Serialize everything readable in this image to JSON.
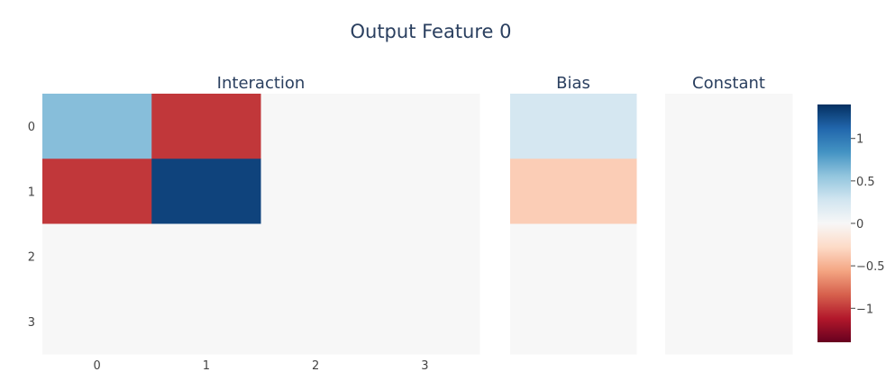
{
  "chart_data": {
    "type": "heatmap",
    "title": "Output Feature 0",
    "panels": [
      {
        "name": "Interaction",
        "x_ticks": [
          "0",
          "1",
          "2",
          "3"
        ],
        "y_ticks": [
          "0",
          "1",
          "2",
          "3"
        ],
        "z": [
          [
            0.6,
            -1.0,
            0,
            0
          ],
          [
            -1.0,
            1.3,
            0,
            0
          ],
          [
            0,
            0,
            0,
            0
          ],
          [
            0,
            0,
            0,
            0
          ]
        ]
      },
      {
        "name": "Bias",
        "x_ticks": [],
        "y_ticks": [],
        "z": [
          [
            0.25
          ],
          [
            -0.35
          ],
          [
            0
          ],
          [
            0
          ]
        ]
      },
      {
        "name": "Constant",
        "x_ticks": [],
        "y_ticks": [],
        "z": [
          [
            0
          ],
          [
            0
          ],
          [
            0
          ],
          [
            0
          ]
        ]
      }
    ],
    "colorscale": "RdBu",
    "zmin": -1.4,
    "zmax": 1.4,
    "colorbar_ticks": [
      {
        "value": 1,
        "label": "1"
      },
      {
        "value": 0.5,
        "label": "0.5"
      },
      {
        "value": 0,
        "label": "0"
      },
      {
        "value": -0.5,
        "label": "−0.5"
      },
      {
        "value": -1,
        "label": "−1"
      }
    ],
    "colorscale_stops": [
      [
        0,
        "#67001f"
      ],
      [
        0.1,
        "#b2182b"
      ],
      [
        0.2,
        "#d6604d"
      ],
      [
        0.3,
        "#f4a582"
      ],
      [
        0.4,
        "#fddbc7"
      ],
      [
        0.5,
        "#f7f7f7"
      ],
      [
        0.6,
        "#d1e5f0"
      ],
      [
        0.7,
        "#92c5de"
      ],
      [
        0.8,
        "#4393c3"
      ],
      [
        0.9,
        "#2166ac"
      ],
      [
        1,
        "#053061"
      ]
    ]
  }
}
